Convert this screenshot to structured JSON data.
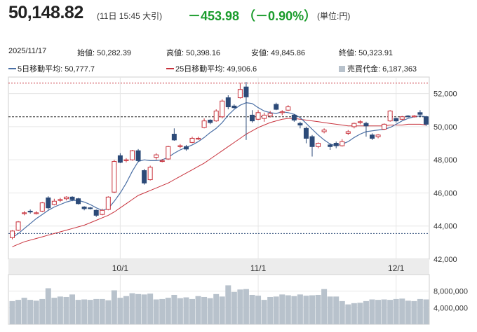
{
  "header": {
    "price": "50,148.82",
    "timestamp": "(11日 15:45 大引)",
    "change": "－453.98 （－0.90%）",
    "unit": "(単位:円)"
  },
  "info": {
    "date": "2025/11/17",
    "open": "始値: 50,282.39",
    "high": "高値: 50,398.16",
    "low": "安値: 49,845.86",
    "close": "終値: 50,323.91"
  },
  "legend": {
    "ma5": "5日移動平均: 50,777.7",
    "ma25": "25日移動平均: 49,906.6",
    "volume": "売買代金: 6,187,363"
  },
  "colors": {
    "up": "#c8323c",
    "down": "#2c4a78",
    "ma5": "#4a6fa5",
    "ma25": "#c8323c",
    "volume": "#b8c2cc",
    "change": "#1a9c2c"
  },
  "chart_data": {
    "type": "candlestick",
    "x_tick_labels": [
      {
        "label": "10/1",
        "index": 18
      },
      {
        "label": "11/1",
        "index": 41
      },
      {
        "label": "12/1",
        "index": 64
      }
    ],
    "price_axis": {
      "ylim": [
        42000,
        53000
      ],
      "ticks": [
        42000,
        44000,
        46000,
        48000,
        50000,
        52000
      ],
      "tick_labels": [
        "42,000",
        "44,000",
        "46,000",
        "48,000",
        "50,000",
        "52,000"
      ]
    },
    "volume_axis": {
      "ylim": [
        0,
        12000000
      ],
      "ticks": [
        4000000,
        8000000
      ],
      "tick_labels": [
        "4,000,000",
        "8,000,000"
      ]
    },
    "reference_lines": {
      "high_dashed": 52636,
      "current_dashed": 50600,
      "low_dashed": 43550
    },
    "candles": [
      [
        43300,
        43700,
        43200,
        43750
      ],
      [
        43750,
        44250,
        43700,
        44300
      ],
      [
        44750,
        44800,
        44650,
        44900
      ],
      [
        44900,
        44850,
        44750,
        45000
      ],
      [
        44800,
        44800,
        44700,
        44900
      ],
      [
        44900,
        45400,
        44850,
        45450
      ],
      [
        45700,
        45100,
        45000,
        45800
      ],
      [
        45300,
        45500,
        45250,
        45650
      ],
      [
        45550,
        45600,
        45450,
        45700
      ],
      [
        45650,
        45750,
        45550,
        45800
      ],
      [
        45750,
        45600,
        45500,
        45800
      ],
      [
        45650,
        45350,
        45300,
        45700
      ],
      [
        45150,
        45050,
        44950,
        45200
      ],
      [
        45100,
        45050,
        45000,
        45150
      ],
      [
        44950,
        44650,
        44550,
        45000
      ],
      [
        44700,
        44950,
        44650,
        45050
      ],
      [
        45000,
        45750,
        44950,
        45800
      ],
      [
        46050,
        47900,
        46000,
        48000
      ],
      [
        48250,
        47850,
        47800,
        48400
      ],
      [
        47950,
        48000,
        47850,
        48100
      ],
      [
        48000,
        48550,
        47950,
        48600
      ],
      [
        48550,
        47950,
        47850,
        48650
      ],
      [
        47350,
        46600,
        46500,
        47450
      ],
      [
        46800,
        47550,
        46750,
        47650
      ],
      [
        48150,
        48300,
        48000,
        48400
      ],
      [
        47950,
        47950,
        47850,
        48050
      ],
      [
        48050,
        48800,
        48000,
        48850
      ],
      [
        49550,
        49200,
        49150,
        49900
      ],
      [
        48800,
        48850,
        48700,
        48950
      ],
      [
        48800,
        48650,
        48550,
        48900
      ],
      [
        49050,
        49300,
        49000,
        49400
      ],
      [
        49300,
        49300,
        49200,
        49400
      ],
      [
        49950,
        50350,
        49900,
        50500
      ],
      [
        50400,
        50250,
        50150,
        50450
      ],
      [
        50350,
        50950,
        50300,
        51050
      ],
      [
        50600,
        51550,
        50500,
        51650
      ],
      [
        51750,
        51200,
        51050,
        51900
      ],
      [
        51250,
        51150,
        51100,
        51350
      ],
      [
        51750,
        52250,
        51700,
        52650
      ],
      [
        52400,
        51800,
        49200,
        52700
      ],
      [
        50700,
        50350,
        50250,
        51000
      ],
      [
        50450,
        50850,
        50400,
        51000
      ],
      [
        50500,
        50700,
        50300,
        50850
      ],
      [
        50650,
        50800,
        50550,
        50950
      ],
      [
        51350,
        51050,
        51000,
        51450
      ],
      [
        50850,
        50900,
        50700,
        51000
      ],
      [
        51000,
        51200,
        50950,
        51300
      ],
      [
        50700,
        50400,
        50300,
        50750
      ],
      [
        50200,
        50100,
        49900,
        50300
      ],
      [
        49900,
        49300,
        49000,
        50000
      ],
      [
        49400,
        48800,
        48200,
        49500
      ],
      [
        48800,
        49000,
        48700,
        49050
      ],
      [
        49700,
        49800,
        49600,
        49900
      ],
      [
        48900,
        48800,
        48600,
        49000
      ],
      [
        49000,
        48850,
        48700,
        49100
      ],
      [
        48850,
        49100,
        48800,
        49250
      ],
      [
        49600,
        49700,
        49500,
        49800
      ],
      [
        50000,
        50200,
        49900,
        50250
      ],
      [
        50250,
        50300,
        50150,
        50400
      ],
      [
        50200,
        50050,
        49400,
        50300
      ],
      [
        49500,
        49300,
        49200,
        49600
      ],
      [
        49400,
        49500,
        49300,
        49550
      ],
      [
        49850,
        50150,
        49800,
        50200
      ],
      [
        50350,
        50950,
        50300,
        51000
      ],
      [
        50500,
        50350,
        50250,
        50550
      ],
      [
        50450,
        50600,
        50400,
        50650
      ],
      [
        50650,
        50600,
        50550,
        50700
      ],
      [
        50600,
        50650,
        50550,
        50700
      ],
      [
        50850,
        50750,
        50600,
        51000
      ],
      [
        50600,
        50150,
        50050,
        50650
      ]
    ],
    "ma5": [
      43300,
      43550,
      43850,
      44150,
      44450,
      44700,
      44950,
      45150,
      45300,
      45450,
      45550,
      45550,
      45450,
      45300,
      45100,
      44950,
      45050,
      45500,
      46000,
      46600,
      47300,
      47900,
      48000,
      47950,
      47950,
      48000,
      48150,
      48400,
      48600,
      48750,
      48900,
      49100,
      49350,
      49650,
      49900,
      50250,
      50700,
      51050,
      51300,
      51450,
      51400,
      51150,
      50950,
      50850,
      50800,
      50900,
      50850,
      50750,
      50550,
      50200,
      49850,
      49500,
      49200,
      48950,
      48850,
      48950,
      49100,
      49350,
      49550,
      49700,
      49750,
      49800,
      49850,
      49950,
      50150,
      50350,
      50500,
      50600,
      50650,
      50600
    ],
    "ma25": [
      42750,
      42900,
      43050,
      43150,
      43250,
      43350,
      43450,
      43550,
      43650,
      43750,
      43850,
      43950,
      44050,
      44200,
      44350,
      44500,
      44650,
      44850,
      45100,
      45350,
      45600,
      45850,
      46000,
      46150,
      46300,
      46450,
      46600,
      46800,
      47000,
      47200,
      47400,
      47600,
      47800,
      48050,
      48300,
      48550,
      48800,
      49050,
      49300,
      49550,
      49750,
      49950,
      50100,
      50250,
      50350,
      50450,
      50500,
      50500,
      50450,
      50400,
      50350,
      50300,
      50250,
      50200,
      50150,
      50100,
      50050,
      50050,
      50050,
      50050,
      50050,
      50050,
      50050,
      50100,
      50100,
      50100,
      50150,
      50150,
      50150,
      50100
    ],
    "volume": [
      5600000,
      5900000,
      6400000,
      5900000,
      5700000,
      6100000,
      8700000,
      6400000,
      6700000,
      6600000,
      7200000,
      5900000,
      6000000,
      5900000,
      6100000,
      6100000,
      5800000,
      8200000,
      6400000,
      6800000,
      7500000,
      7300000,
      7200000,
      7400000,
      6000000,
      6100000,
      6400000,
      7100000,
      6300000,
      6500000,
      6100000,
      6800000,
      6600000,
      6300000,
      7300000,
      6700000,
      9400000,
      7800000,
      8400000,
      8500000,
      7100000,
      6900000,
      5900000,
      6600000,
      6700000,
      7200000,
      7000000,
      6800000,
      7200000,
      6900000,
      7000000,
      7100000,
      8500000,
      6700000,
      6700000,
      5600000,
      4800000,
      5100000,
      5200000,
      5600000,
      6000000,
      5900000,
      6000000,
      5900000,
      6100000,
      6200000,
      5700000,
      5600000,
      6100000,
      6000000
    ]
  }
}
